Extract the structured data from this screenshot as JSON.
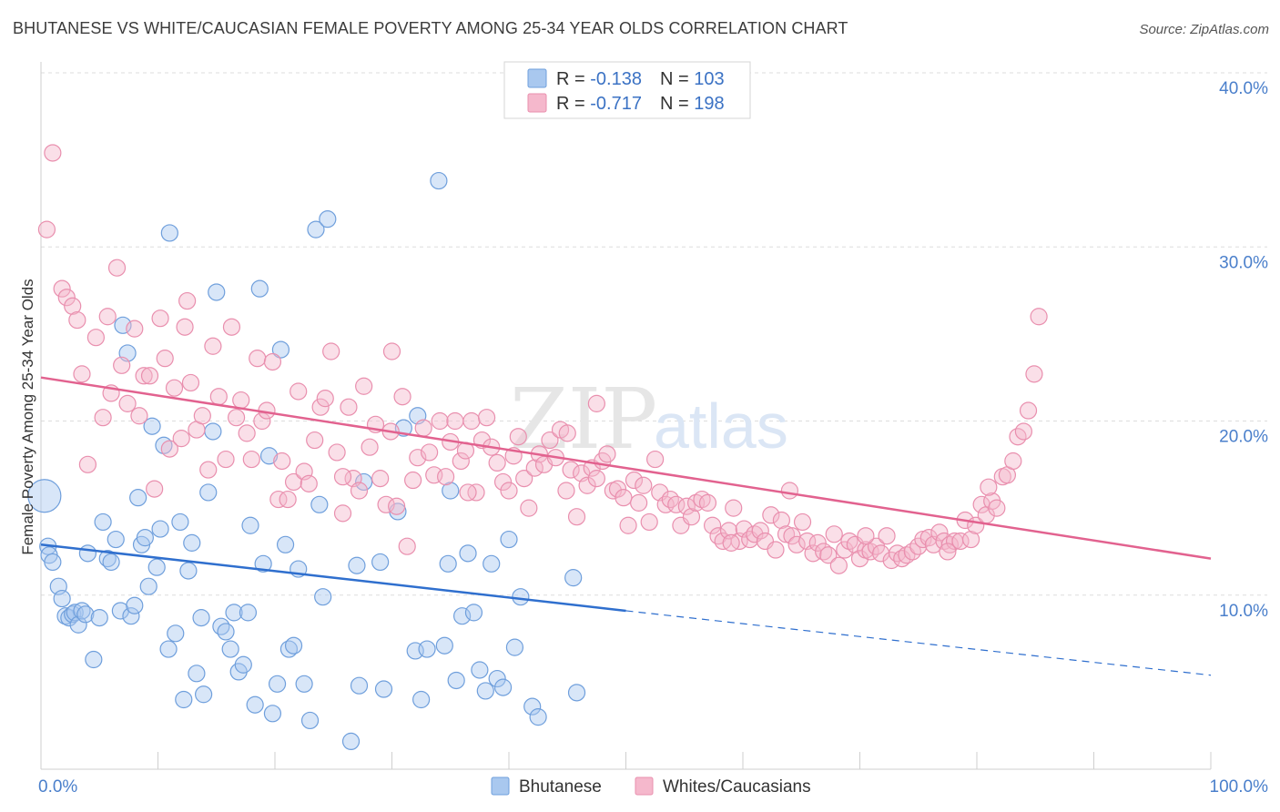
{
  "header": {
    "title": "BHUTANESE VS WHITE/CAUCASIAN FEMALE POVERTY AMONG 25-34 YEAR OLDS CORRELATION CHART",
    "source": "Source: ZipAtlas.com"
  },
  "watermark": {
    "zip": "ZIP",
    "atlas": "atlas"
  },
  "legend": {
    "rows": [
      {
        "r_label": "R = ",
        "r_value": "-0.138",
        "n_label": "N = ",
        "n_value": "103",
        "color": "#a9c8ef"
      },
      {
        "r_label": "R = ",
        "r_value": "-0.717",
        "n_label": "N = ",
        "n_value": "198",
        "color": "#f5b8cc"
      }
    ]
  },
  "bottom_legend": {
    "items": [
      "Bhutanese",
      "Whites/Caucasians"
    ]
  },
  "colors": {
    "blue_fill": "#a9c8ef",
    "blue_stroke": "#6f9fdc",
    "blue_line": "#2f6fce",
    "pink_fill": "#f5b8cc",
    "pink_stroke": "#e98fae",
    "pink_line": "#e2628f",
    "axis_text": "#4a7fcb",
    "grid": "#dddddd"
  },
  "chart_data": {
    "type": "scatter",
    "title": "BHUTANESE VS WHITE/CAUCASIAN FEMALE POVERTY AMONG 25-34 YEAR OLDS CORRELATION CHART",
    "xlabel": "",
    "ylabel": "Female Poverty Among 25-34 Year Olds",
    "xlim": [
      0,
      100
    ],
    "ylim": [
      0,
      40
    ],
    "x_tick_labels": [
      "0.0%",
      "100.0%"
    ],
    "y_tick_labels": [
      "10.0%",
      "20.0%",
      "30.0%",
      "40.0%"
    ],
    "y_ticks": [
      10,
      20,
      30,
      40
    ],
    "grid": true,
    "legend_position": "top-center",
    "series": [
      {
        "name": "Bhutanese",
        "R": -0.138,
        "N": 103,
        "trend": {
          "x0": 0,
          "y0": 12.9,
          "x1": 50,
          "y1": 9.1,
          "dashed_to_x": 100,
          "dashed_to_y": 5.4
        },
        "points": [
          [
            0.3,
            15.7
          ],
          [
            0.6,
            12.8
          ],
          [
            0.7,
            12.3
          ],
          [
            1.0,
            11.9
          ],
          [
            1.5,
            10.5
          ],
          [
            1.8,
            9.8
          ],
          [
            2.1,
            8.8
          ],
          [
            2.4,
            8.7
          ],
          [
            2.7,
            8.9
          ],
          [
            2.9,
            9.0
          ],
          [
            3.2,
            8.3
          ],
          [
            3.5,
            9.1
          ],
          [
            3.8,
            8.9
          ],
          [
            4.0,
            12.4
          ],
          [
            4.5,
            6.3
          ],
          [
            5.0,
            8.7
          ],
          [
            5.3,
            14.2
          ],
          [
            5.7,
            12.1
          ],
          [
            6.0,
            11.9
          ],
          [
            6.4,
            13.2
          ],
          [
            6.8,
            9.1
          ],
          [
            7.0,
            25.5
          ],
          [
            7.4,
            23.9
          ],
          [
            7.7,
            8.8
          ],
          [
            8.0,
            9.4
          ],
          [
            8.3,
            15.6
          ],
          [
            8.6,
            12.9
          ],
          [
            8.9,
            13.3
          ],
          [
            9.2,
            10.5
          ],
          [
            9.5,
            19.7
          ],
          [
            9.9,
            11.6
          ],
          [
            10.2,
            13.8
          ],
          [
            10.5,
            18.6
          ],
          [
            10.9,
            6.9
          ],
          [
            11.0,
            30.8
          ],
          [
            11.5,
            7.8
          ],
          [
            11.9,
            14.2
          ],
          [
            12.2,
            4.0
          ],
          [
            12.6,
            11.4
          ],
          [
            12.9,
            13.0
          ],
          [
            13.3,
            5.5
          ],
          [
            13.7,
            8.7
          ],
          [
            13.9,
            4.3
          ],
          [
            14.3,
            15.9
          ],
          [
            14.7,
            19.4
          ],
          [
            15.0,
            27.4
          ],
          [
            15.4,
            8.2
          ],
          [
            15.8,
            7.9
          ],
          [
            16.2,
            6.9
          ],
          [
            16.5,
            9.0
          ],
          [
            16.9,
            5.6
          ],
          [
            17.3,
            6.0
          ],
          [
            17.7,
            9.0
          ],
          [
            17.9,
            14.0
          ],
          [
            18.3,
            3.7
          ],
          [
            18.7,
            27.6
          ],
          [
            19.0,
            11.8
          ],
          [
            19.5,
            18.0
          ],
          [
            19.8,
            3.2
          ],
          [
            20.2,
            4.9
          ],
          [
            20.5,
            24.1
          ],
          [
            20.9,
            12.9
          ],
          [
            21.2,
            6.9
          ],
          [
            21.6,
            7.1
          ],
          [
            22.0,
            11.5
          ],
          [
            22.5,
            4.9
          ],
          [
            23.0,
            2.8
          ],
          [
            23.5,
            31.0
          ],
          [
            23.8,
            15.2
          ],
          [
            24.1,
            9.9
          ],
          [
            24.5,
            31.6
          ],
          [
            26.5,
            1.6
          ],
          [
            27.0,
            11.7
          ],
          [
            27.2,
            4.8
          ],
          [
            27.6,
            16.5
          ],
          [
            29.0,
            11.9
          ],
          [
            29.3,
            4.6
          ],
          [
            30.5,
            14.8
          ],
          [
            31.0,
            19.6
          ],
          [
            32.0,
            6.8
          ],
          [
            32.2,
            20.3
          ],
          [
            32.5,
            4.0
          ],
          [
            33.0,
            6.9
          ],
          [
            34.0,
            33.8
          ],
          [
            34.5,
            7.1
          ],
          [
            34.8,
            11.8
          ],
          [
            35.0,
            16.0
          ],
          [
            35.5,
            5.1
          ],
          [
            36.0,
            8.8
          ],
          [
            36.5,
            12.4
          ],
          [
            37.0,
            9.0
          ],
          [
            37.5,
            5.7
          ],
          [
            38.0,
            4.5
          ],
          [
            38.5,
            11.8
          ],
          [
            39.0,
            5.2
          ],
          [
            39.5,
            4.7
          ],
          [
            40.0,
            13.2
          ],
          [
            40.5,
            7.0
          ],
          [
            41.0,
            9.9
          ],
          [
            42.0,
            3.6
          ],
          [
            42.5,
            3.0
          ],
          [
            45.5,
            11.0
          ],
          [
            45.8,
            4.4
          ]
        ]
      },
      {
        "name": "Whites/Caucasians",
        "R": -0.717,
        "N": 198,
        "trend": {
          "x0": 0,
          "y0": 22.5,
          "x1": 100,
          "y1": 12.1
        },
        "points": [
          [
            0.5,
            31.0
          ],
          [
            1.0,
            35.4
          ],
          [
            1.8,
            27.6
          ],
          [
            2.2,
            27.1
          ],
          [
            2.7,
            26.6
          ],
          [
            3.1,
            25.8
          ],
          [
            3.5,
            22.7
          ],
          [
            4.0,
            17.5
          ],
          [
            4.7,
            24.8
          ],
          [
            5.3,
            20.2
          ],
          [
            5.7,
            26.0
          ],
          [
            6.0,
            21.6
          ],
          [
            6.5,
            28.8
          ],
          [
            6.9,
            23.2
          ],
          [
            7.4,
            21.0
          ],
          [
            8.0,
            25.3
          ],
          [
            8.4,
            20.3
          ],
          [
            8.8,
            22.6
          ],
          [
            9.3,
            22.6
          ],
          [
            9.7,
            16.1
          ],
          [
            10.2,
            25.9
          ],
          [
            10.6,
            23.6
          ],
          [
            11.0,
            18.4
          ],
          [
            11.4,
            21.9
          ],
          [
            12.0,
            19.0
          ],
          [
            12.5,
            26.9
          ],
          [
            12.8,
            22.2
          ],
          [
            13.3,
            19.5
          ],
          [
            13.8,
            20.3
          ],
          [
            14.3,
            17.2
          ],
          [
            14.7,
            24.3
          ],
          [
            15.2,
            21.4
          ],
          [
            15.8,
            17.8
          ],
          [
            16.3,
            25.4
          ],
          [
            16.7,
            20.2
          ],
          [
            17.1,
            21.2
          ],
          [
            17.6,
            19.3
          ],
          [
            18.0,
            17.8
          ],
          [
            18.5,
            23.6
          ],
          [
            18.9,
            20.0
          ],
          [
            19.3,
            20.6
          ],
          [
            19.8,
            23.4
          ],
          [
            20.3,
            15.5
          ],
          [
            20.6,
            17.7
          ],
          [
            21.1,
            15.5
          ],
          [
            21.6,
            16.5
          ],
          [
            22.0,
            21.7
          ],
          [
            22.5,
            17.1
          ],
          [
            22.9,
            16.4
          ],
          [
            23.4,
            18.9
          ],
          [
            23.9,
            20.8
          ],
          [
            24.3,
            21.3
          ],
          [
            24.8,
            24.0
          ],
          [
            25.3,
            18.2
          ],
          [
            25.8,
            14.7
          ],
          [
            26.3,
            20.8
          ],
          [
            26.7,
            16.7
          ],
          [
            27.2,
            16.0
          ],
          [
            27.6,
            22.0
          ],
          [
            28.1,
            18.5
          ],
          [
            28.6,
            19.8
          ],
          [
            29.0,
            16.7
          ],
          [
            29.5,
            15.2
          ],
          [
            29.9,
            19.4
          ],
          [
            30.4,
            15.1
          ],
          [
            30.9,
            21.4
          ],
          [
            31.3,
            12.8
          ],
          [
            31.8,
            16.6
          ],
          [
            32.2,
            17.9
          ],
          [
            32.7,
            19.6
          ],
          [
            33.2,
            18.2
          ],
          [
            33.6,
            16.9
          ],
          [
            34.1,
            20.0
          ],
          [
            34.6,
            16.8
          ],
          [
            35.0,
            18.8
          ],
          [
            35.4,
            20.0
          ],
          [
            35.9,
            17.7
          ],
          [
            36.3,
            18.3
          ],
          [
            36.8,
            20.0
          ],
          [
            37.2,
            15.9
          ],
          [
            37.7,
            18.9
          ],
          [
            38.1,
            20.2
          ],
          [
            38.5,
            18.5
          ],
          [
            39.0,
            17.6
          ],
          [
            39.5,
            16.5
          ],
          [
            40.0,
            16.0
          ],
          [
            40.4,
            18.0
          ],
          [
            40.8,
            19.1
          ],
          [
            41.3,
            16.7
          ],
          [
            41.7,
            15.0
          ],
          [
            42.2,
            17.3
          ],
          [
            42.6,
            18.1
          ],
          [
            43.0,
            17.5
          ],
          [
            43.5,
            18.9
          ],
          [
            44.0,
            17.9
          ],
          [
            44.4,
            19.5
          ],
          [
            44.9,
            16.0
          ],
          [
            45.3,
            17.2
          ],
          [
            45.8,
            14.5
          ],
          [
            46.2,
            17.0
          ],
          [
            46.7,
            16.3
          ],
          [
            47.1,
            17.3
          ],
          [
            47.5,
            16.7
          ],
          [
            48.0,
            17.7
          ],
          [
            48.4,
            18.1
          ],
          [
            48.9,
            16.0
          ],
          [
            49.3,
            16.1
          ],
          [
            49.8,
            15.6
          ],
          [
            50.2,
            14.0
          ],
          [
            50.7,
            16.6
          ],
          [
            51.1,
            15.3
          ],
          [
            51.5,
            16.3
          ],
          [
            52.0,
            14.2
          ],
          [
            52.5,
            17.8
          ],
          [
            52.9,
            15.9
          ],
          [
            53.4,
            15.2
          ],
          [
            53.8,
            15.5
          ],
          [
            54.3,
            15.2
          ],
          [
            54.7,
            14.0
          ],
          [
            55.2,
            15.1
          ],
          [
            55.6,
            14.5
          ],
          [
            56.0,
            15.3
          ],
          [
            56.5,
            15.5
          ],
          [
            57.0,
            15.3
          ],
          [
            57.4,
            14.0
          ],
          [
            57.9,
            13.4
          ],
          [
            58.3,
            13.1
          ],
          [
            58.8,
            13.7
          ],
          [
            59.2,
            15.0
          ],
          [
            59.7,
            13.1
          ],
          [
            60.1,
            13.8
          ],
          [
            60.6,
            13.2
          ],
          [
            61.0,
            13.5
          ],
          [
            61.5,
            13.7
          ],
          [
            61.9,
            13.1
          ],
          [
            62.4,
            14.6
          ],
          [
            62.8,
            12.6
          ],
          [
            63.3,
            14.3
          ],
          [
            63.7,
            13.5
          ],
          [
            64.2,
            13.4
          ],
          [
            64.6,
            12.9
          ],
          [
            65.1,
            14.2
          ],
          [
            65.5,
            13.1
          ],
          [
            66.0,
            12.4
          ],
          [
            66.4,
            13.0
          ],
          [
            66.9,
            12.5
          ],
          [
            67.3,
            12.3
          ],
          [
            67.8,
            13.5
          ],
          [
            68.2,
            11.7
          ],
          [
            68.7,
            12.6
          ],
          [
            69.1,
            13.1
          ],
          [
            69.6,
            12.9
          ],
          [
            70.0,
            12.1
          ],
          [
            70.5,
            12.6
          ],
          [
            70.9,
            12.5
          ],
          [
            71.4,
            12.8
          ],
          [
            71.8,
            12.4
          ],
          [
            72.3,
            13.4
          ],
          [
            72.7,
            12.0
          ],
          [
            73.2,
            12.4
          ],
          [
            73.6,
            12.1
          ],
          [
            74.0,
            12.3
          ],
          [
            74.5,
            12.5
          ],
          [
            75.0,
            12.8
          ],
          [
            75.4,
            13.2
          ],
          [
            75.9,
            13.3
          ],
          [
            76.3,
            12.9
          ],
          [
            76.8,
            13.6
          ],
          [
            77.2,
            13.1
          ],
          [
            77.7,
            12.9
          ],
          [
            78.1,
            13.1
          ],
          [
            78.6,
            13.1
          ],
          [
            79.0,
            14.3
          ],
          [
            79.5,
            13.2
          ],
          [
            79.9,
            14.0
          ],
          [
            80.4,
            15.2
          ],
          [
            80.8,
            14.6
          ],
          [
            81.3,
            15.4
          ],
          [
            81.7,
            15.0
          ],
          [
            82.2,
            16.8
          ],
          [
            82.6,
            16.9
          ],
          [
            83.1,
            17.7
          ],
          [
            83.5,
            19.1
          ],
          [
            84.0,
            19.4
          ],
          [
            84.4,
            20.6
          ],
          [
            84.9,
            22.7
          ],
          [
            85.3,
            26.0
          ],
          [
            30.0,
            24.0
          ],
          [
            45.0,
            19.3
          ],
          [
            59.0,
            13.0
          ],
          [
            64.0,
            16.0
          ],
          [
            70.5,
            13.4
          ],
          [
            77.5,
            12.5
          ],
          [
            81.0,
            16.2
          ],
          [
            47.5,
            21.0
          ],
          [
            36.5,
            15.9
          ],
          [
            25.8,
            16.8
          ],
          [
            12.3,
            25.4
          ]
        ]
      }
    ]
  }
}
